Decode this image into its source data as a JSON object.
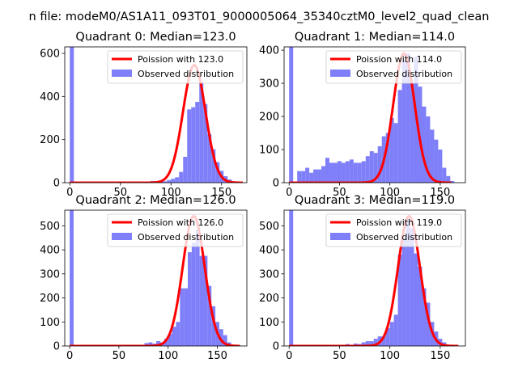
{
  "figure": {
    "suptitle": "n file: modeM0/AS1A11_093T01_9000005064_35340cztM0_level2_quad_clean"
  },
  "legend_labels": {
    "observed": "Observed distribution"
  },
  "colors": {
    "observed": "#7f7ff9",
    "poisson": "#ff0000"
  },
  "chart_data": [
    {
      "type": "bar",
      "title": "Quadrant 0: Median=123.0",
      "median": 123.0,
      "poisson_label": "Poission with 123.0",
      "xlim": [
        -5,
        175
      ],
      "ylim": [
        0,
        630
      ],
      "xticks": [
        0,
        50,
        100,
        150
      ],
      "yticks": [
        0,
        200,
        400,
        600
      ],
      "bin_width": 4,
      "bins": [
        [
          0,
          630
        ],
        [
          64,
          1
        ],
        [
          68,
          1
        ],
        [
          72,
          2
        ],
        [
          76,
          5
        ],
        [
          80,
          8
        ],
        [
          84,
          5
        ],
        [
          88,
          10
        ],
        [
          92,
          6
        ],
        [
          96,
          12
        ],
        [
          100,
          18
        ],
        [
          104,
          25
        ],
        [
          108,
          50
        ],
        [
          112,
          120
        ],
        [
          116,
          340
        ],
        [
          120,
          350
        ],
        [
          124,
          375
        ],
        [
          128,
          470
        ],
        [
          132,
          365
        ],
        [
          136,
          225
        ],
        [
          140,
          155
        ],
        [
          144,
          95
        ],
        [
          148,
          55
        ],
        [
          152,
          30
        ],
        [
          156,
          15
        ],
        [
          160,
          6
        ],
        [
          164,
          2
        ]
      ],
      "poisson": {
        "mean": 123.0,
        "peak": 545,
        "xrange": [
          0,
          171
        ]
      }
    },
    {
      "type": "bar",
      "title": "Quadrant 1: Median=114.0",
      "median": 114.0,
      "poisson_label": "Poission with 114.0",
      "xlim": [
        -5,
        175
      ],
      "ylim": [
        0,
        410
      ],
      "xticks": [
        0,
        50,
        100,
        150
      ],
      "yticks": [
        0,
        100,
        200,
        300,
        400
      ],
      "bin_width": 4,
      "bins": [
        [
          0,
          410
        ],
        [
          8,
          35
        ],
        [
          12,
          35
        ],
        [
          16,
          45
        ],
        [
          20,
          30
        ],
        [
          24,
          40
        ],
        [
          28,
          40
        ],
        [
          32,
          50
        ],
        [
          36,
          75
        ],
        [
          40,
          60
        ],
        [
          44,
          60
        ],
        [
          48,
          65
        ],
        [
          52,
          60
        ],
        [
          56,
          65
        ],
        [
          60,
          70
        ],
        [
          64,
          60
        ],
        [
          68,
          60
        ],
        [
          72,
          65
        ],
        [
          76,
          80
        ],
        [
          80,
          95
        ],
        [
          84,
          90
        ],
        [
          88,
          110
        ],
        [
          92,
          140
        ],
        [
          96,
          150
        ],
        [
          100,
          195
        ],
        [
          104,
          180
        ],
        [
          108,
          280
        ],
        [
          112,
          370
        ],
        [
          116,
          390
        ],
        [
          120,
          300
        ],
        [
          124,
          380
        ],
        [
          128,
          290
        ],
        [
          132,
          230
        ],
        [
          136,
          200
        ],
        [
          140,
          160
        ],
        [
          144,
          130
        ],
        [
          148,
          100
        ],
        [
          152,
          45
        ],
        [
          156,
          20
        ],
        [
          160,
          5
        ]
      ],
      "poisson": {
        "mean": 114.0,
        "peak": 390,
        "xrange": [
          0,
          161
        ]
      }
    },
    {
      "type": "bar",
      "title": "Quadrant 2: Median=126.0",
      "median": 126.0,
      "poisson_label": "Poission with 126.0",
      "xlim": [
        -5,
        180
      ],
      "ylim": [
        0,
        565
      ],
      "xticks": [
        0,
        50,
        100,
        150
      ],
      "yticks": [
        0,
        100,
        200,
        300,
        400,
        500
      ],
      "bin_width": 4,
      "bins": [
        [
          0,
          565
        ],
        [
          68,
          2
        ],
        [
          72,
          5
        ],
        [
          76,
          12
        ],
        [
          80,
          15
        ],
        [
          84,
          10
        ],
        [
          88,
          20
        ],
        [
          92,
          15
        ],
        [
          96,
          30
        ],
        [
          100,
          50
        ],
        [
          104,
          80
        ],
        [
          108,
          100
        ],
        [
          112,
          240
        ],
        [
          116,
          240
        ],
        [
          120,
          390
        ],
        [
          124,
          430
        ],
        [
          128,
          485
        ],
        [
          132,
          375
        ],
        [
          136,
          375
        ],
        [
          140,
          250
        ],
        [
          144,
          165
        ],
        [
          148,
          100
        ],
        [
          152,
          70
        ],
        [
          156,
          45
        ],
        [
          160,
          15
        ],
        [
          164,
          4
        ]
      ],
      "poisson": {
        "mean": 126.0,
        "peak": 540,
        "xrange": [
          0,
          173
        ]
      }
    },
    {
      "type": "bar",
      "title": "Quadrant 3: Median=119.0",
      "median": 119.0,
      "poisson_label": "Poission with 119.0",
      "xlim": [
        -5,
        175
      ],
      "ylim": [
        0,
        565
      ],
      "xticks": [
        0,
        50,
        100,
        150
      ],
      "yticks": [
        0,
        100,
        200,
        300,
        400,
        500
      ],
      "bin_width": 4,
      "bins": [
        [
          0,
          565
        ],
        [
          24,
          3
        ],
        [
          28,
          5
        ],
        [
          36,
          2
        ],
        [
          44,
          4
        ],
        [
          52,
          5
        ],
        [
          56,
          8
        ],
        [
          60,
          5
        ],
        [
          64,
          10
        ],
        [
          68,
          8
        ],
        [
          72,
          15
        ],
        [
          76,
          20
        ],
        [
          80,
          20
        ],
        [
          84,
          30
        ],
        [
          88,
          40
        ],
        [
          92,
          40
        ],
        [
          96,
          75
        ],
        [
          100,
          100
        ],
        [
          104,
          130
        ],
        [
          108,
          380
        ],
        [
          112,
          450
        ],
        [
          116,
          530
        ],
        [
          120,
          490
        ],
        [
          124,
          385
        ],
        [
          128,
          330
        ],
        [
          132,
          240
        ],
        [
          136,
          180
        ],
        [
          140,
          100
        ],
        [
          144,
          60
        ],
        [
          148,
          30
        ],
        [
          152,
          15
        ],
        [
          156,
          5
        ]
      ],
      "poisson": {
        "mean": 119.0,
        "peak": 540,
        "xrange": [
          0,
          168
        ]
      }
    }
  ]
}
